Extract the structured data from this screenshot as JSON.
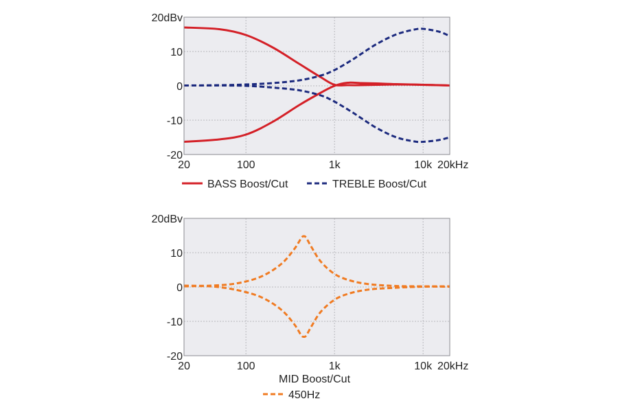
{
  "colors": {
    "background": "#ffffff",
    "plot_bg": "#ececf0",
    "grid": "#b8b8bd",
    "frame": "#8a8a8f",
    "bass": "#d42027",
    "treble": "#1c2a7e",
    "mid": "#f07b22"
  },
  "chart_data": [
    {
      "type": "line",
      "x_scale": "log",
      "xlim": [
        20,
        20000
      ],
      "ylim": [
        -20,
        20
      ],
      "x_ticks": [
        {
          "value": 20,
          "label": "20"
        },
        {
          "value": 100,
          "label": "100"
        },
        {
          "value": 1000,
          "label": "1k"
        },
        {
          "value": 10000,
          "label": "10k"
        },
        {
          "value": 20000,
          "label": "20kHz"
        }
      ],
      "y_ticks": [
        {
          "value": 20,
          "label": "20dBv"
        },
        {
          "value": 10,
          "label": "10"
        },
        {
          "value": 0,
          "label": "0"
        },
        {
          "value": -10,
          "label": "-10"
        },
        {
          "value": -20,
          "label": "-20"
        }
      ],
      "grid": true,
      "legend_position": "bottom",
      "legend": [
        {
          "label": "BASS Boost/Cut",
          "style": "solid",
          "color": "#d42027"
        },
        {
          "label": "TREBLE Boost/Cut",
          "style": "dashed",
          "color": "#1c2a7e"
        }
      ],
      "series": [
        {
          "group": "BASS Boost/Cut",
          "variant": "boost",
          "style": "solid",
          "color": "#d42027",
          "x": [
            20,
            50,
            100,
            200,
            400,
            700,
            1000,
            1400,
            2000,
            3000,
            5000,
            10000,
            20000
          ],
          "y": [
            17,
            16.5,
            14.8,
            11.2,
            6.4,
            2.5,
            0.3,
            0.2,
            0.2,
            0.3,
            0.4,
            0.3,
            0.1
          ]
        },
        {
          "group": "BASS Boost/Cut",
          "variant": "cut",
          "style": "solid",
          "color": "#d42027",
          "x": [
            20,
            50,
            100,
            200,
            400,
            700,
            1000,
            1400,
            2000,
            3000,
            5000,
            10000,
            20000
          ],
          "y": [
            -16.3,
            -15.6,
            -14.2,
            -10.5,
            -5.6,
            -2.0,
            0.0,
            0.9,
            0.8,
            0.7,
            0.5,
            0.3,
            0.1
          ]
        },
        {
          "group": "TREBLE Boost/Cut",
          "variant": "boost",
          "style": "dashed",
          "color": "#1c2a7e",
          "x": [
            20,
            50,
            100,
            200,
            400,
            700,
            1000,
            1500,
            2000,
            3000,
            5000,
            8000,
            10000,
            15000,
            20000
          ],
          "y": [
            0.1,
            0.2,
            0.4,
            0.8,
            1.6,
            3.0,
            4.6,
            7.2,
            9.3,
            12.2,
            15.0,
            16.4,
            16.6,
            15.8,
            14.5
          ]
        },
        {
          "group": "TREBLE Boost/Cut",
          "variant": "cut",
          "style": "dashed",
          "color": "#1c2a7e",
          "x": [
            20,
            50,
            100,
            200,
            400,
            700,
            1000,
            1500,
            2000,
            3000,
            5000,
            8000,
            10000,
            15000,
            20000
          ],
          "y": [
            0.1,
            0.1,
            0.0,
            -0.5,
            -1.3,
            -2.8,
            -4.6,
            -7.3,
            -9.4,
            -12.3,
            -15.0,
            -16.2,
            -16.3,
            -15.8,
            -15.0
          ]
        }
      ]
    },
    {
      "type": "line",
      "title": "MID Boost/Cut",
      "x_scale": "log",
      "xlim": [
        20,
        20000
      ],
      "ylim": [
        -20,
        20
      ],
      "x_ticks": [
        {
          "value": 20,
          "label": "20"
        },
        {
          "value": 100,
          "label": "100"
        },
        {
          "value": 1000,
          "label": "1k"
        },
        {
          "value": 10000,
          "label": "10k"
        },
        {
          "value": 20000,
          "label": "20kHz"
        }
      ],
      "y_ticks": [
        {
          "value": 20,
          "label": "20dBv"
        },
        {
          "value": 10,
          "label": "10"
        },
        {
          "value": 0,
          "label": "0"
        },
        {
          "value": -10,
          "label": "-10"
        },
        {
          "value": -20,
          "label": "-20"
        }
      ],
      "grid": true,
      "legend_position": "bottom",
      "legend": [
        {
          "label": "450Hz",
          "style": "dashed",
          "color": "#f07b22"
        }
      ],
      "series": [
        {
          "group": "450Hz",
          "variant": "boost",
          "style": "dashed",
          "color": "#f07b22",
          "x": [
            20,
            40,
            80,
            150,
            250,
            350,
            420,
            450,
            480,
            550,
            700,
            1000,
            1500,
            2500,
            5000,
            10000,
            20000
          ],
          "y": [
            0.4,
            0.4,
            1.1,
            3.1,
            6.7,
            11.0,
            14.2,
            14.8,
            14.3,
            11.6,
            7.4,
            3.8,
            1.9,
            0.8,
            0.3,
            0.2,
            0.2
          ]
        },
        {
          "group": "450Hz",
          "variant": "cut",
          "style": "dashed",
          "color": "#f07b22",
          "x": [
            20,
            40,
            80,
            150,
            250,
            350,
            420,
            450,
            480,
            550,
            700,
            1000,
            1500,
            2500,
            5000,
            10000,
            20000
          ],
          "y": [
            0.2,
            0.2,
            -0.9,
            -3.0,
            -6.6,
            -10.8,
            -14.0,
            -14.5,
            -14.1,
            -11.4,
            -7.2,
            -3.7,
            -1.8,
            -0.7,
            -0.2,
            0.1,
            0.1
          ]
        }
      ]
    }
  ]
}
